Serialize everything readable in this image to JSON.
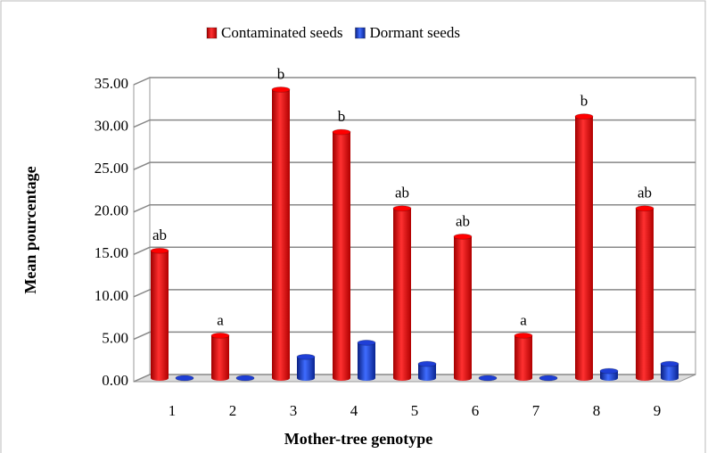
{
  "chart_data": {
    "type": "bar",
    "x_label": "Mother-tree genotype",
    "y_label": "Mean pourcentage",
    "categories": [
      "1",
      "2",
      "3",
      "4",
      "5",
      "6",
      "7",
      "8",
      "9"
    ],
    "series": [
      {
        "name": "Contaminated seeds",
        "color": "#ff0000",
        "values": [
          15,
          5,
          34,
          29,
          20,
          16.67,
          5,
          30.83,
          20
        ],
        "value_labels": [
          "ab",
          "a",
          "b",
          "b",
          "ab",
          "ab",
          "a",
          "b",
          "ab"
        ]
      },
      {
        "name": "Dormant seeds",
        "color": "#1f3fd6",
        "values": [
          0,
          0,
          2.5,
          4.17,
          1.67,
          0,
          0,
          0.83,
          1.67
        ]
      }
    ],
    "ylim": [
      0,
      35
    ],
    "yticks": [
      {
        "value": 0,
        "label": "0.00"
      },
      {
        "value": 5,
        "label": "5.00"
      },
      {
        "value": 10,
        "label": "10.00"
      },
      {
        "value": 15,
        "label": "15.00"
      },
      {
        "value": 20,
        "label": "20.00"
      },
      {
        "value": 25,
        "label": "25.00"
      },
      {
        "value": 30,
        "label": "30.00"
      },
      {
        "value": 35,
        "label": "35.00"
      }
    ],
    "grid": true
  }
}
